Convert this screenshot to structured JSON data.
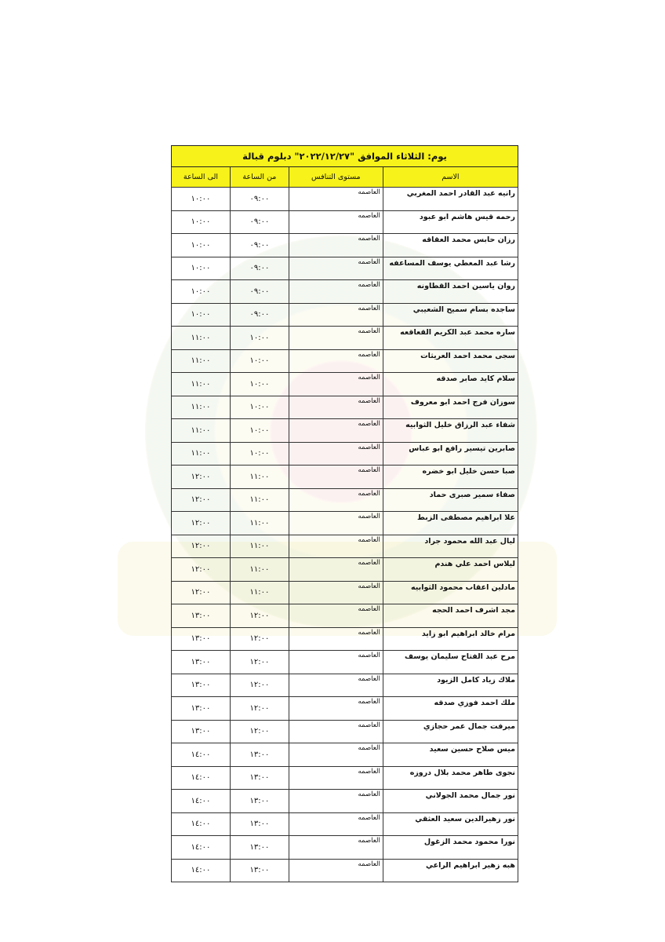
{
  "title": "يوم: الثلاثاء  الموافق \"٢٠٢٢/١٢/٢٧\" دبلوم قبالة",
  "columns": {
    "name": "الاسم",
    "level": "مستوى التنافس",
    "from": "من الساعة",
    "to": "الى الساعة"
  },
  "rows": [
    {
      "name": "رانيه عبد القادر احمد المغربي",
      "level": "العاصمه",
      "from": "٠٩:٠٠",
      "to": "١٠:٠٠"
    },
    {
      "name": "رحمه قيس هاشم ابو عبود",
      "level": "العاصمه",
      "from": "٠٩:٠٠",
      "to": "١٠:٠٠"
    },
    {
      "name": "رزان حابس محمد العقاقه",
      "level": "العاصمه",
      "from": "٠٩:٠٠",
      "to": "١٠:٠٠"
    },
    {
      "name": "رشا عبد المعطي يوسف المساعفه",
      "level": "العاصمه",
      "from": "٠٩:٠٠",
      "to": "١٠:٠٠"
    },
    {
      "name": "روان ياسين احمد القطاونه",
      "level": "العاصمه",
      "from": "٠٩:٠٠",
      "to": "١٠:٠٠"
    },
    {
      "name": "ساجده بسام سميح الشعيبي",
      "level": "العاصمه",
      "from": "٠٩:٠٠",
      "to": "١٠:٠٠"
    },
    {
      "name": "ساره محمد عبد الكريم القعاقعه",
      "level": "العاصمه",
      "from": "١٠:٠٠",
      "to": "١١:٠٠"
    },
    {
      "name": "سجى محمد احمد العريثات",
      "level": "العاصمه",
      "from": "١٠:٠٠",
      "to": "١١:٠٠"
    },
    {
      "name": "سلام كايد صابر صدقه",
      "level": "العاصمه",
      "from": "١٠:٠٠",
      "to": "١١:٠٠"
    },
    {
      "name": "سوزان فرج احمد ابو معروف",
      "level": "العاصمه",
      "from": "١٠:٠٠",
      "to": "١١:٠٠"
    },
    {
      "name": "شفاء عبد الرزاق خليل الثوابيه",
      "level": "العاصمه",
      "from": "١٠:٠٠",
      "to": "١١:٠٠"
    },
    {
      "name": "صابرين تيسير رافع ابو  عباس",
      "level": "العاصمه",
      "from": "١٠:٠٠",
      "to": "١١:٠٠"
    },
    {
      "name": "صبا حسن خليل ابو خضره",
      "level": "العاصمه",
      "from": "١١:٠٠",
      "to": "١٢:٠٠"
    },
    {
      "name": "صفاء سمير صبرى حماد",
      "level": "العاصمه",
      "from": "١١:٠٠",
      "to": "١٢:٠٠"
    },
    {
      "name": "علا ابراهيم مصطفى الزبط",
      "level": "العاصمه",
      "from": "١١:٠٠",
      "to": "١٢:٠٠"
    },
    {
      "name": "ليال عبد الله محمود جراد",
      "level": "العاصمه",
      "from": "١١:٠٠",
      "to": "١٢:٠٠"
    },
    {
      "name": "ليلاس احمد علي هندم",
      "level": "العاصمه",
      "from": "١١:٠٠",
      "to": "١٢:٠٠"
    },
    {
      "name": "مادلين اعقاب محمود الثوابيه",
      "level": "العاصمه",
      "from": "١١:٠٠",
      "to": "١٢:٠٠"
    },
    {
      "name": "مجد اشرف احمد الحجه",
      "level": "العاصمه",
      "from": "١٢:٠٠",
      "to": "١٣:٠٠"
    },
    {
      "name": "مرام خالد ابراهيم ابو زايد",
      "level": "العاصمه",
      "from": "١٢:٠٠",
      "to": "١٣:٠٠"
    },
    {
      "name": "مرح عبد الفتاح سليمان يوسف",
      "level": "العاصمه",
      "from": "١٢:٠٠",
      "to": "١٣:٠٠"
    },
    {
      "name": "ملاك زياد كامل الزيود",
      "level": "العاصمه",
      "from": "١٢:٠٠",
      "to": "١٣:٠٠"
    },
    {
      "name": "ملك احمد فوزي صدقه",
      "level": "العاصمه",
      "from": "١٢:٠٠",
      "to": "١٣:٠٠"
    },
    {
      "name": "ميرفت جمال عمر حجازي",
      "level": "العاصمه",
      "from": "١٢:٠٠",
      "to": "١٣:٠٠"
    },
    {
      "name": "ميس صلاح حسين سعيد",
      "level": "العاصمه",
      "from": "١٣:٠٠",
      "to": "١٤:٠٠"
    },
    {
      "name": "نجوى طاهر محمد بلال دروزه",
      "level": "العاصمه",
      "from": "١٣:٠٠",
      "to": "١٤:٠٠"
    },
    {
      "name": "نور جمال محمد الجولاني",
      "level": "العاصمه",
      "from": "١٣:٠٠",
      "to": "١٤:٠٠"
    },
    {
      "name": "نور زهيرالدين سعيد العثقي",
      "level": "العاصمه",
      "from": "١٣:٠٠",
      "to": "١٤:٠٠"
    },
    {
      "name": "نورا محمود محمد الزغول",
      "level": "العاصمه",
      "from": "١٣:٠٠",
      "to": "١٤:٠٠"
    },
    {
      "name": "هبه زهير ابراهيم الراعي",
      "level": "العاصمه",
      "from": "١٣:٠٠",
      "to": "١٤:٠٠"
    }
  ]
}
